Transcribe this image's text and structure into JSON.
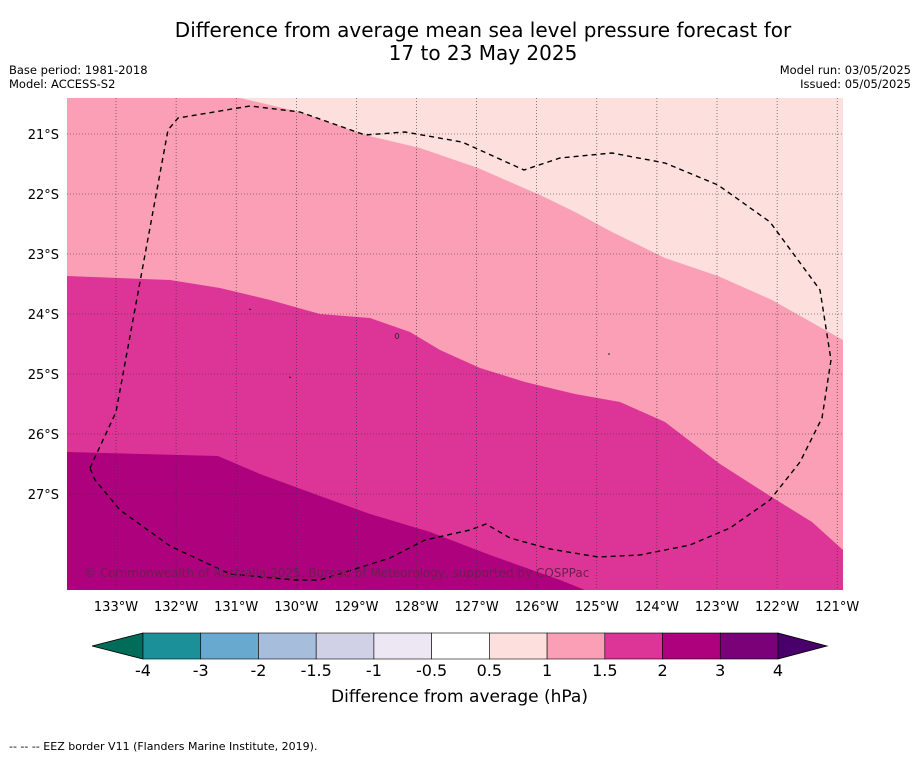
{
  "title": {
    "line1": "Difference from average mean sea level pressure forecast for",
    "line2": "17 to 23 May 2025"
  },
  "meta": {
    "base_period": "Base period: 1981-2018",
    "model": "Model: ACCESS-S2",
    "model_run": "Model run: 03/05/2025",
    "issued": "Issued: 05/05/2025"
  },
  "map": {
    "lon_labels": [
      "133°W",
      "132°W",
      "131°W",
      "130°W",
      "129°W",
      "128°W",
      "127°W",
      "126°W",
      "125°W",
      "124°W",
      "123°W",
      "122°W",
      "121°W"
    ],
    "lat_labels": [
      "21°S",
      "22°S",
      "23°S",
      "24°S",
      "25°S",
      "26°S",
      "27°S"
    ],
    "copyright": "© Commonwealth of Australia 2025, Bureau of Meteorology, supported by COSPPac"
  },
  "colorbar": {
    "ticks": [
      "-4",
      "-3",
      "-2",
      "-1.5",
      "-1",
      "-0.5",
      "0.5",
      "1",
      "1.5",
      "2",
      "3",
      "4"
    ],
    "colors": [
      "#1b9099",
      "#67a9cf",
      "#a6bddb",
      "#d0d1e6",
      "#ece7f2",
      "#ffffff",
      "#fde0dd",
      "#fa9fb5",
      "#dd3497",
      "#ae017e",
      "#7a0177"
    ],
    "under_color": "#016c59",
    "over_color": "#49006a",
    "label": "Difference from average (hPa)"
  },
  "footnote": "--  --  -- EEZ border V11 (Flanders Marine Institute, 2019)."
}
